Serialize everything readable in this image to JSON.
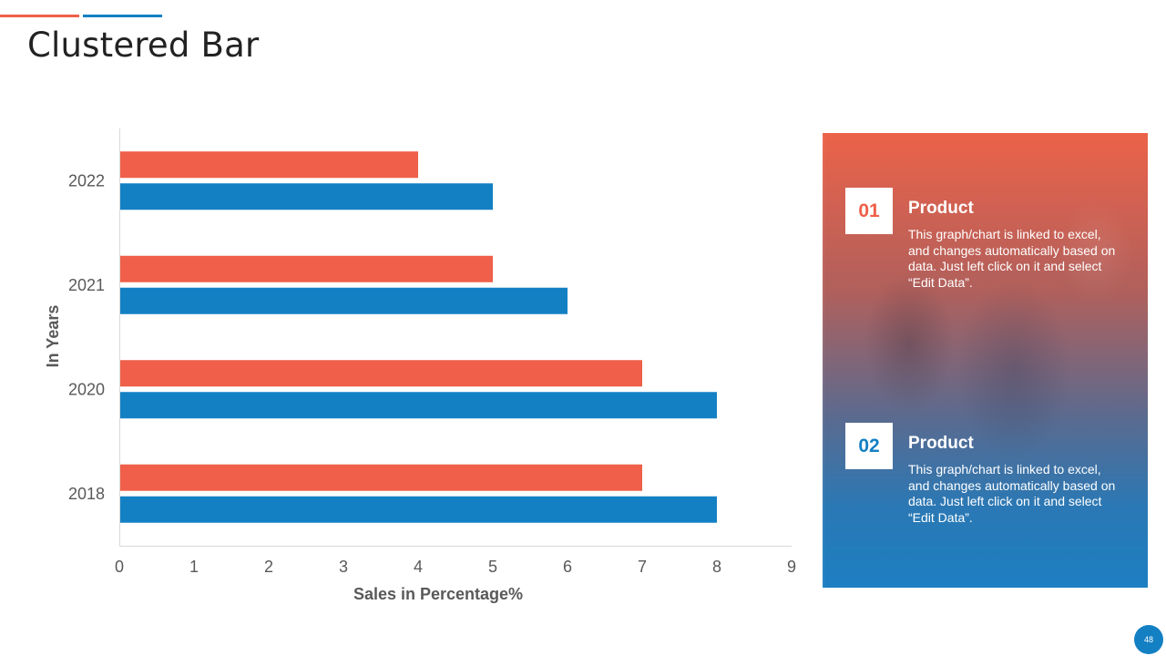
{
  "slide": {
    "title": "Clustered Bar",
    "page_number": "48"
  },
  "colors": {
    "orange": "#ef5f49",
    "blue": "#1480c4"
  },
  "chart_data": {
    "type": "bar",
    "orientation": "horizontal",
    "categories": [
      "2022",
      "2021",
      "2020",
      "2018"
    ],
    "series": [
      {
        "name": "Product 01",
        "color": "#ef5f49",
        "values": [
          4,
          5,
          7,
          7
        ]
      },
      {
        "name": "Product 02",
        "color": "#1480c4",
        "values": [
          5,
          6,
          8,
          8
        ]
      }
    ],
    "xlabel": "Sales in Percentage%",
    "ylabel": "In Years",
    "xlim": [
      0,
      9
    ],
    "xticks": [
      "0",
      "1",
      "2",
      "3",
      "4",
      "5",
      "6",
      "7",
      "8",
      "9"
    ],
    "legend": "none",
    "grid": false
  },
  "panel": {
    "items": [
      {
        "number": "01",
        "heading": "Product",
        "text": "This graph/chart is linked to excel, and changes automatically based on data. Just left click on it and select “Edit Data”."
      },
      {
        "number": "02",
        "heading": "Product",
        "text": "This graph/chart is linked to excel, and changes automatically based on data. Just left click on it and select “Edit Data”."
      }
    ]
  }
}
